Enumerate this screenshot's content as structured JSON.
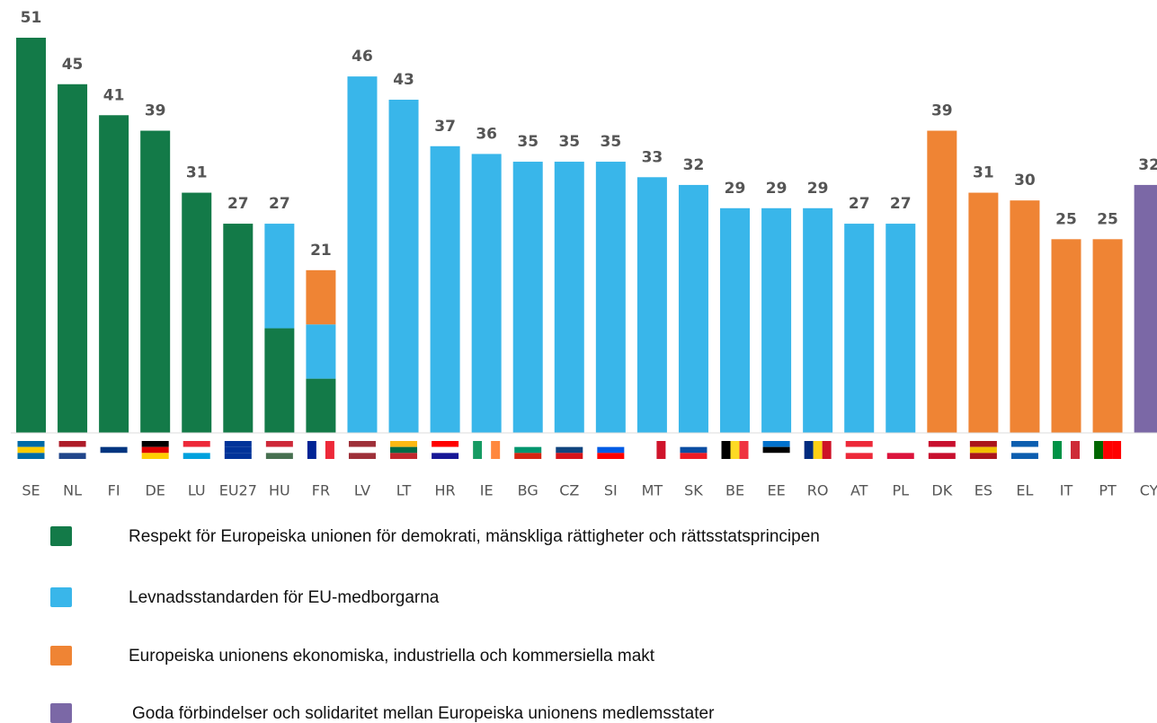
{
  "chart_data": {
    "type": "bar",
    "categories": [
      "SE",
      "NL",
      "FI",
      "DE",
      "LU",
      "EU27",
      "HU",
      "FR",
      "LV",
      "LT",
      "HR",
      "IE",
      "BG",
      "CZ",
      "SI",
      "MT",
      "SK",
      "BE",
      "EE",
      "RO",
      "AT",
      "PL",
      "DK",
      "ES",
      "EL",
      "IT",
      "PT",
      "CY"
    ],
    "ylim": [
      0,
      51
    ],
    "series": [
      {
        "name": "Respekt för Europeiska unionen för demokrati, mänskliga rättigheter och rättsstatsprincipen",
        "color": "#137a48",
        "values": [
          51,
          45,
          41,
          39,
          31,
          27,
          27,
          21,
          null,
          null,
          null,
          null,
          null,
          null,
          null,
          null,
          null,
          null,
          null,
          null,
          null,
          null,
          null,
          null,
          null,
          null,
          null,
          null
        ]
      },
      {
        "name": "Levnadsstandarden för EU-medborgarna",
        "color": "#39b6ea",
        "values": [
          null,
          null,
          null,
          null,
          null,
          null,
          27,
          21,
          46,
          43,
          37,
          36,
          35,
          35,
          35,
          33,
          32,
          29,
          29,
          29,
          27,
          27,
          null,
          null,
          null,
          null,
          null,
          null
        ]
      },
      {
        "name": "Europeiska unionens ekonomiska, industriella och kommersiella makt",
        "color": "#ef8434",
        "values": [
          null,
          null,
          null,
          null,
          null,
          null,
          null,
          21,
          null,
          null,
          null,
          null,
          null,
          null,
          null,
          null,
          null,
          null,
          null,
          null,
          null,
          null,
          39,
          31,
          30,
          25,
          25,
          null
        ]
      },
      {
        "name": "Goda förbindelser och solidaritet mellan Europeiska unionens medlemsstater",
        "color": "#7b68a6",
        "values": [
          null,
          null,
          null,
          null,
          null,
          null,
          null,
          null,
          null,
          null,
          null,
          null,
          null,
          null,
          null,
          null,
          null,
          null,
          null,
          null,
          null,
          null,
          null,
          null,
          null,
          null,
          null,
          32
        ]
      }
    ]
  }
}
